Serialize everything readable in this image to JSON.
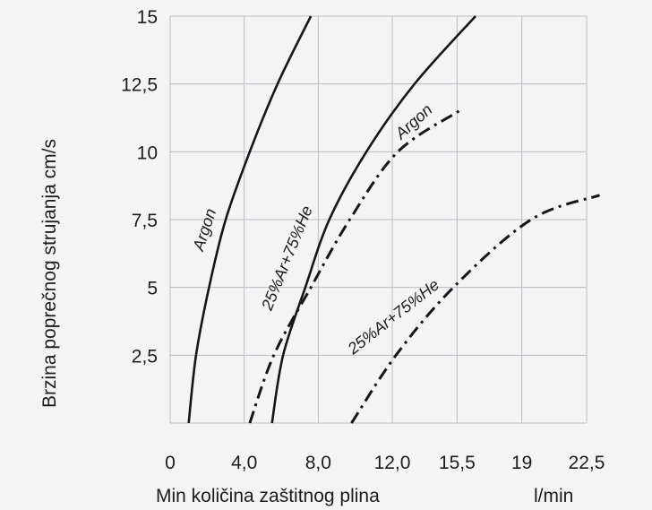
{
  "chart_data": {
    "type": "line",
    "title": "",
    "xlabel": "Min količina zaštitnog plina",
    "xunit": "l/min",
    "ylabel": "Brzina poprečnog strujanja cm/s",
    "x_tick_labels": [
      "0",
      "4,0",
      "8,0",
      "12,0",
      "15,5",
      "19",
      "22,5"
    ],
    "x_ticks": [
      0,
      4.0,
      8.0,
      12.0,
      15.5,
      19,
      22.5
    ],
    "y_tick_labels": [
      "2,5",
      "5",
      "7,5",
      "10",
      "12,5",
      "15"
    ],
    "y_ticks": [
      2.5,
      5,
      7.5,
      10,
      12.5,
      15
    ],
    "xlim": [
      0,
      22.5
    ],
    "ylim": [
      0,
      15
    ],
    "grid": true,
    "series": [
      {
        "name": "Argon",
        "style": "solid",
        "points": [
          [
            1.0,
            0
          ],
          [
            1.4,
            2.5
          ],
          [
            2.1,
            5
          ],
          [
            3.0,
            7.5
          ],
          [
            4.3,
            10
          ],
          [
            5.8,
            12.5
          ],
          [
            7.6,
            15
          ]
        ]
      },
      {
        "name": "25%Ar+75%He",
        "style": "solid",
        "points": [
          [
            5.5,
            0
          ],
          [
            6.1,
            2.5
          ],
          [
            7.3,
            5
          ],
          [
            8.6,
            7.5
          ],
          [
            10.6,
            10
          ],
          [
            13.2,
            12.5
          ],
          [
            16.5,
            15
          ]
        ]
      },
      {
        "name": "Argon",
        "style": "dash-dot",
        "points": [
          [
            4.3,
            0
          ],
          [
            5.6,
            2.5
          ],
          [
            7.6,
            5
          ],
          [
            9.7,
            7.5
          ],
          [
            12.3,
            10
          ],
          [
            15.6,
            11.5
          ]
        ]
      },
      {
        "name": "25%Ar+75%He",
        "style": "dash-dot",
        "points": [
          [
            9.8,
            0
          ],
          [
            12.2,
            2.5
          ],
          [
            15.3,
            5
          ],
          [
            19.5,
            7.5
          ],
          [
            23.2,
            8.4
          ]
        ]
      }
    ],
    "curve_labels": [
      "Argon",
      "25%Ar+75%He",
      "Argon",
      "25%Ar+75%He"
    ]
  }
}
